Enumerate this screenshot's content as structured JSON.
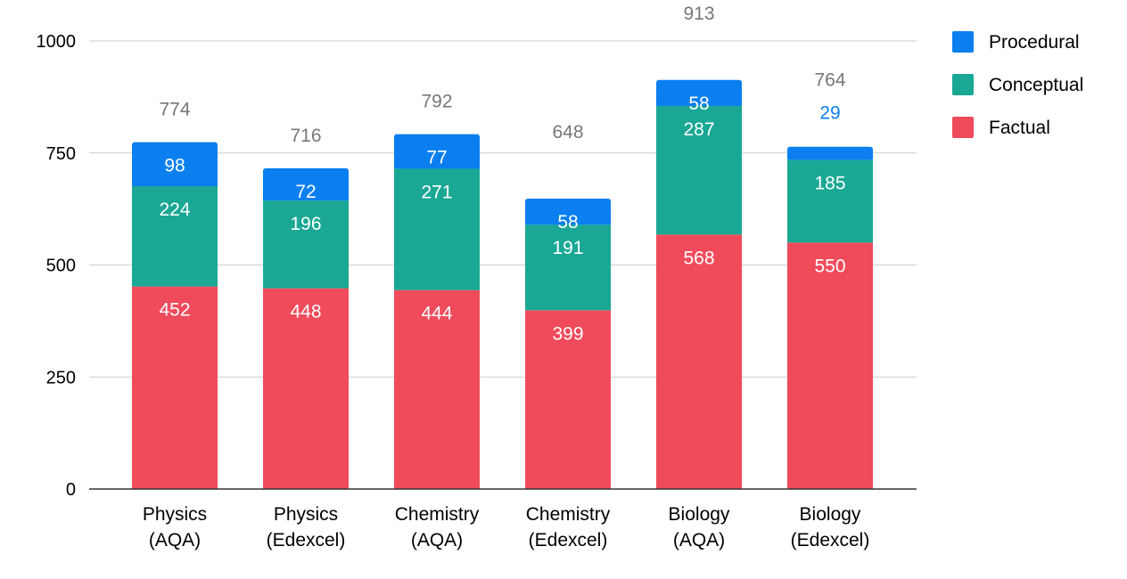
{
  "chart_data": {
    "type": "bar",
    "stacked": true,
    "title": "",
    "xlabel": "",
    "ylabel": "",
    "ylim": [
      0,
      1000
    ],
    "yticks": [
      0,
      250,
      500,
      750,
      1000
    ],
    "grid": true,
    "legend_position": "right",
    "categories": [
      [
        "Physics",
        "(AQA)"
      ],
      [
        "Physics",
        "(Edexcel)"
      ],
      [
        "Chemistry",
        "(AQA)"
      ],
      [
        "Chemistry",
        "(Edexcel)"
      ],
      [
        "Biology",
        "(AQA)"
      ],
      [
        "Biology",
        "(Edexcel)"
      ]
    ],
    "series": [
      {
        "name": "Factual",
        "color": "#ef4b5b",
        "values": [
          452,
          448,
          444,
          399,
          568,
          550
        ]
      },
      {
        "name": "Conceptual",
        "color": "#1aa894",
        "values": [
          224,
          196,
          271,
          191,
          287,
          185
        ]
      },
      {
        "name": "Procedural",
        "color": "#0b7ff0",
        "values": [
          98,
          72,
          77,
          58,
          58,
          29
        ]
      }
    ],
    "totals": [
      774,
      716,
      792,
      648,
      913,
      764
    ],
    "legend_order": [
      "Procedural",
      "Conceptual",
      "Factual"
    ]
  }
}
